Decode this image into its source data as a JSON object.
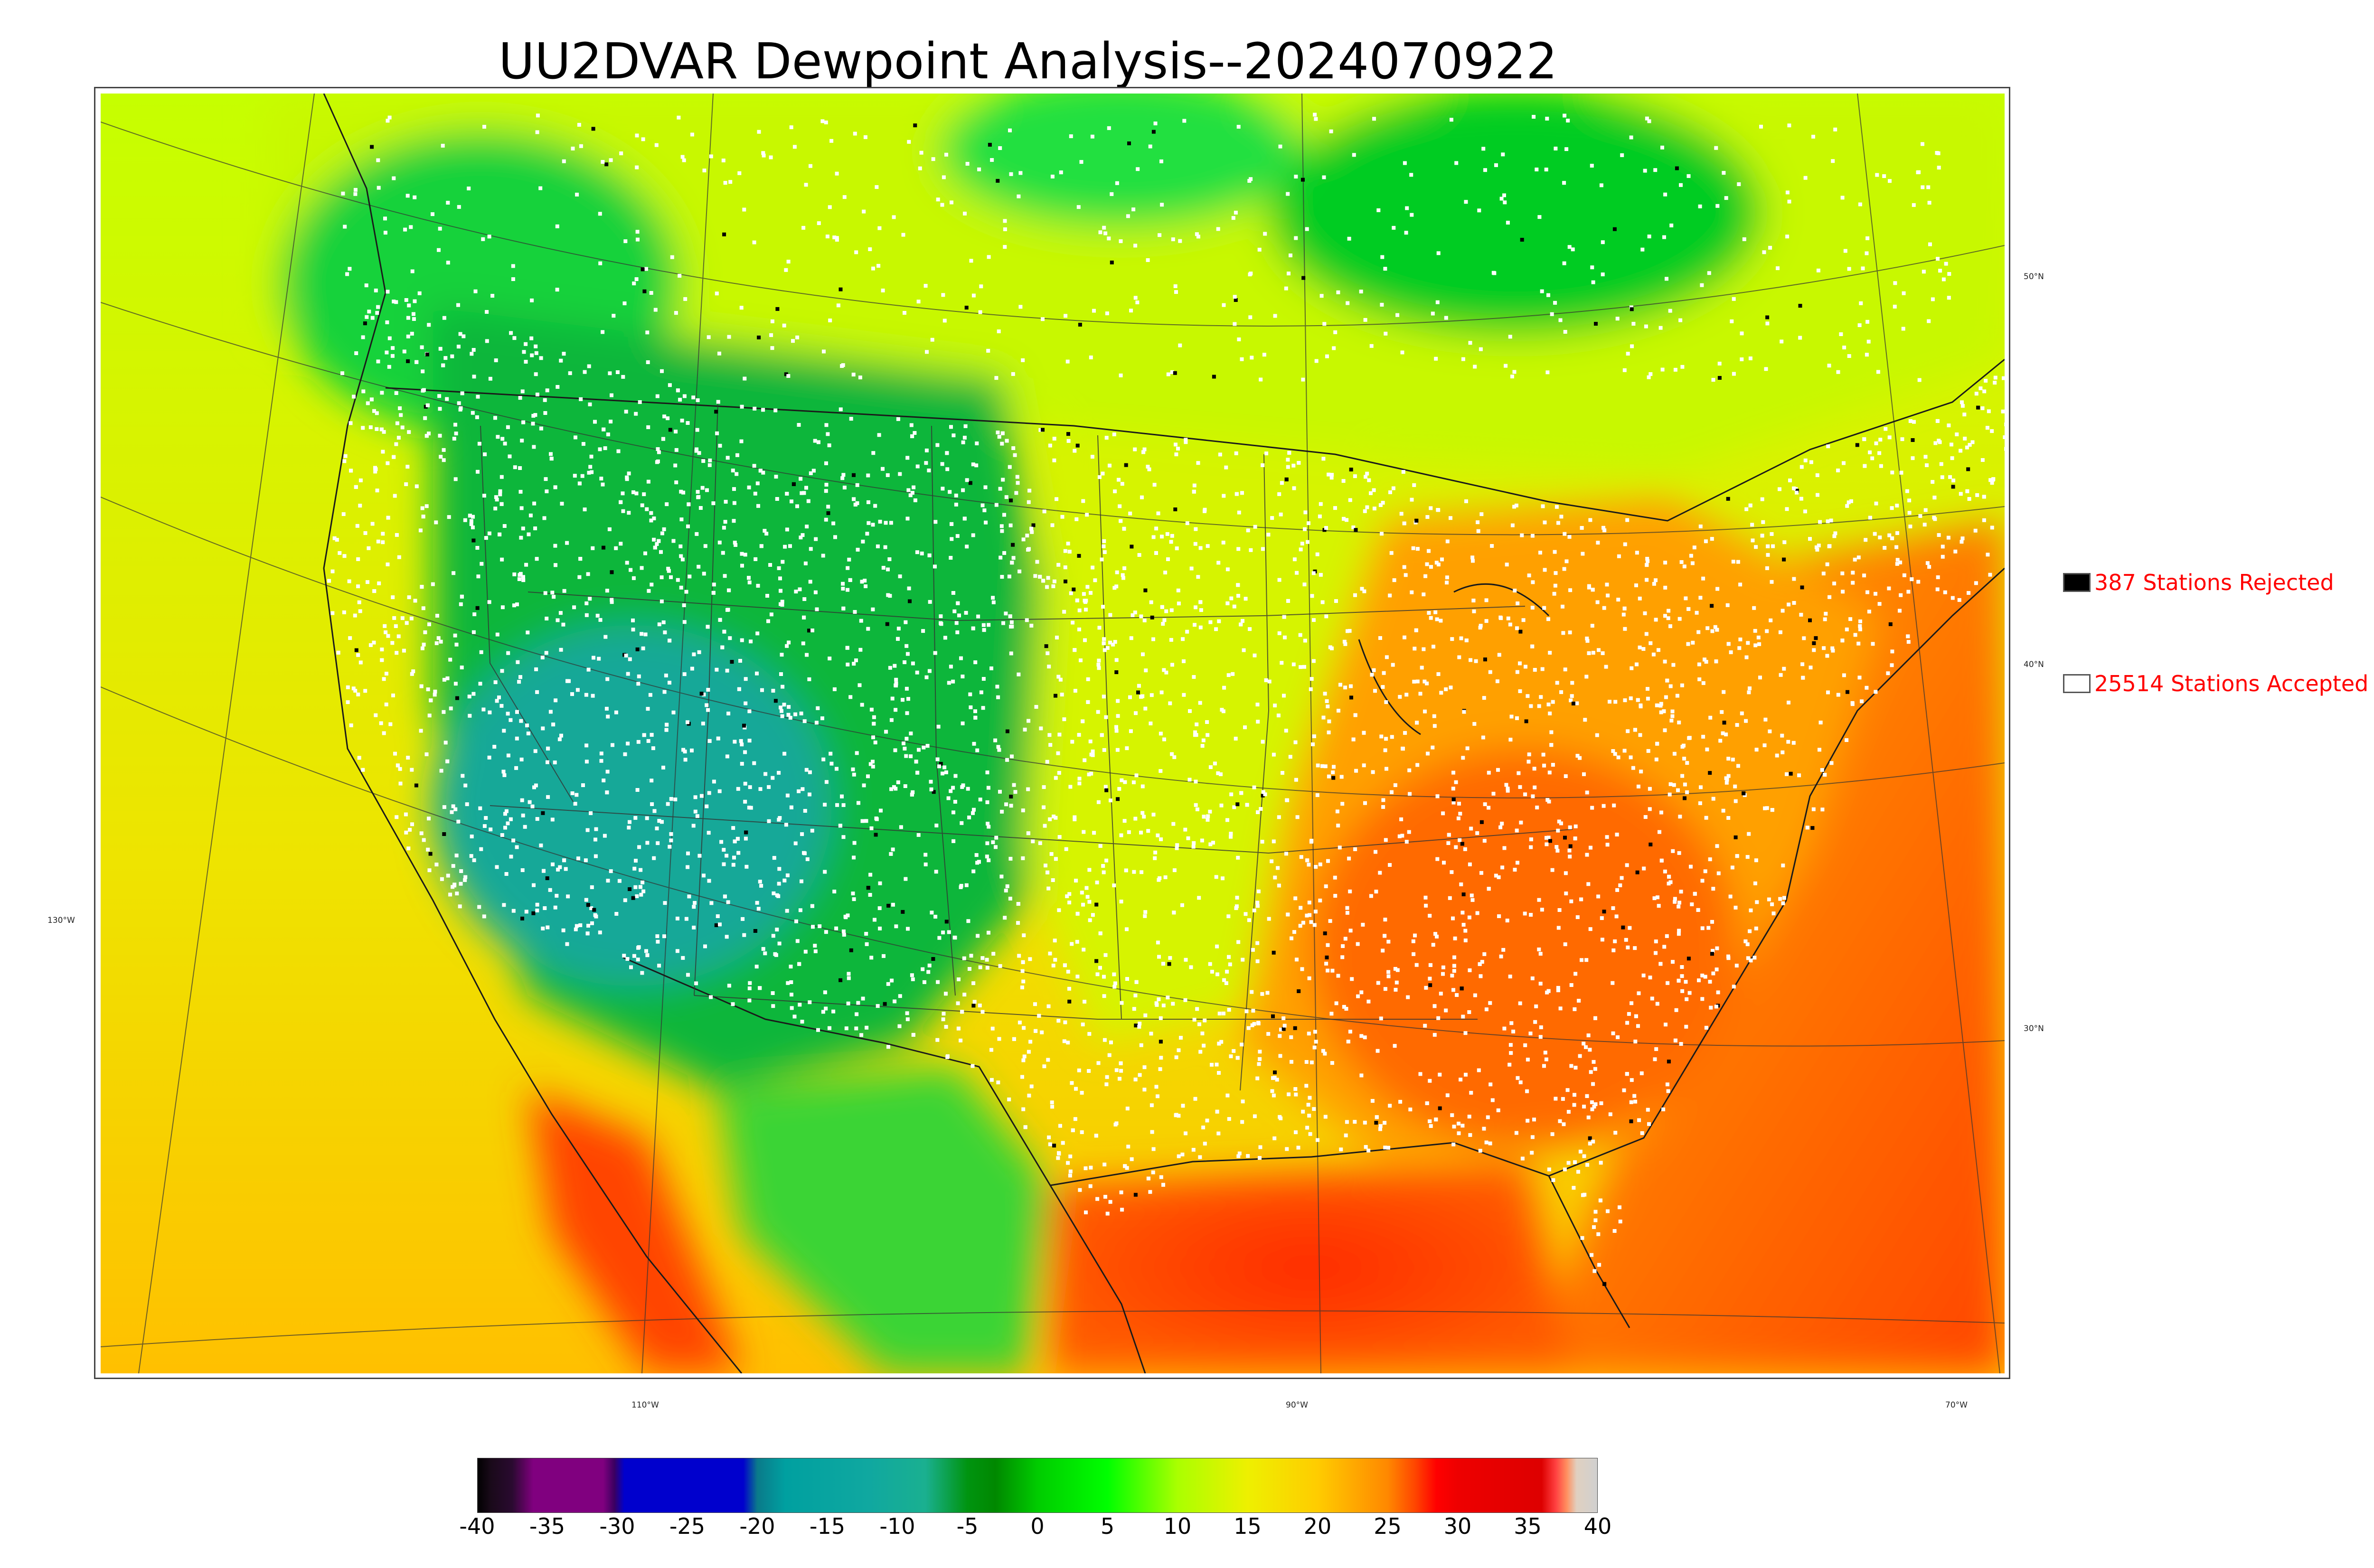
{
  "title": "UU2DVAR Dewpoint Analysis--2024070922",
  "map": {
    "projection": "lambert-conformal",
    "lat_labels": [
      "50°N",
      "40°N",
      "30°N"
    ],
    "lon_labels": [
      "130°W",
      "110°W",
      "90°W",
      "70°W"
    ],
    "palette": {
      "ocean_pacific": "#f2d200",
      "ocean_gulf": "#ff5500",
      "ocean_atlantic": "#ff6a00",
      "canada": "#b9ff00",
      "rockies": "#00aa1e",
      "great_basin": "#11a89a",
      "plains": "#ddf000",
      "southeast": "#ff8a00",
      "station_accepted": "#ffffff",
      "station_rejected": "#000000"
    }
  },
  "legend": {
    "rejected_label": "387 Stations Rejected",
    "accepted_label": "25514 Stations Accepted",
    "rejected_color": "#000000",
    "accepted_color": "#ffffff",
    "text_color": "#ff0000"
  },
  "colorbar": {
    "ticks": [
      "-40",
      "-35",
      "-30",
      "-25",
      "-20",
      "-15",
      "-10",
      "-5",
      "0",
      "5",
      "10",
      "15",
      "20",
      "25",
      "30",
      "35",
      "40"
    ],
    "min": -40,
    "max": 40,
    "stops": [
      {
        "value": -40,
        "color": "#000000"
      },
      {
        "value": -39,
        "color": "#1a0a1a"
      },
      {
        "value": -37.5,
        "color": "#2a0a30"
      },
      {
        "value": -36,
        "color": "#80007f"
      },
      {
        "value": -31,
        "color": "#80007f"
      },
      {
        "value": -30.2,
        "color": "#3a0060"
      },
      {
        "value": -29.5,
        "color": "#0000cd"
      },
      {
        "value": -21,
        "color": "#0000cd"
      },
      {
        "value": -20,
        "color": "#0a7a8a"
      },
      {
        "value": -18,
        "color": "#00a0a0"
      },
      {
        "value": -12,
        "color": "#10a8a0"
      },
      {
        "value": -8,
        "color": "#1ab090"
      },
      {
        "value": -5,
        "color": "#009410"
      },
      {
        "value": -3,
        "color": "#008800"
      },
      {
        "value": 0,
        "color": "#00cc00"
      },
      {
        "value": 5,
        "color": "#00ff00"
      },
      {
        "value": 10,
        "color": "#aaff00"
      },
      {
        "value": 15,
        "color": "#eef000"
      },
      {
        "value": 20,
        "color": "#ffcc00"
      },
      {
        "value": 25,
        "color": "#ff8800"
      },
      {
        "value": 27,
        "color": "#ff4400"
      },
      {
        "value": 28.5,
        "color": "#ff0000"
      },
      {
        "value": 30,
        "color": "#ee0000"
      },
      {
        "value": 36,
        "color": "#dd0000"
      },
      {
        "value": 37,
        "color": "#ff4040"
      },
      {
        "value": 37.8,
        "color": "#ff9060"
      },
      {
        "value": 38.5,
        "color": "#e0d0c0"
      },
      {
        "value": 40,
        "color": "#d0d0d0"
      }
    ]
  }
}
